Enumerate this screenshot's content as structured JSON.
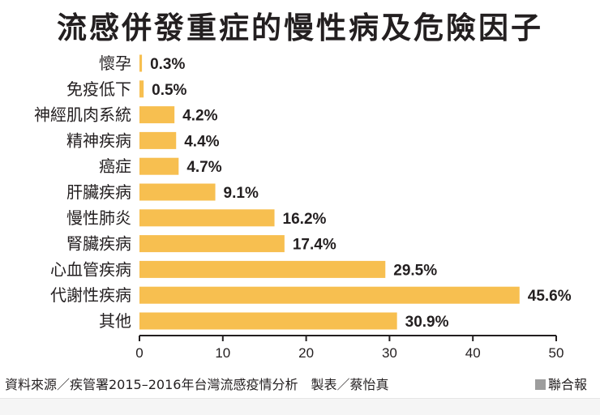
{
  "chart_data": {
    "type": "bar",
    "orientation": "horizontal",
    "title": "流感併發重症的慢性病及危險因子",
    "categories": [
      "懷孕",
      "免疫低下",
      "神經肌肉系統",
      "精神疾病",
      "癌症",
      "肝臟疾病",
      "慢性肺炎",
      "腎臟疾病",
      "心血管疾病",
      "代謝性疾病",
      "其他"
    ],
    "values": [
      0.3,
      0.5,
      4.2,
      4.4,
      4.7,
      9.1,
      16.2,
      17.4,
      29.5,
      45.6,
      30.9
    ],
    "value_labels": [
      "0.3%",
      "0.5%",
      "4.2%",
      "4.4%",
      "4.7%",
      "9.1%",
      "16.2%",
      "17.4%",
      "29.5%",
      "45.6%",
      "30.9%"
    ],
    "xlim": [
      0,
      50
    ],
    "xticks": [
      0,
      10,
      20,
      30,
      40,
      50
    ],
    "bar_color": "#f7bf50",
    "axis_color": "#231f20"
  },
  "footer": {
    "source": "資料來源／疾管署2015–2016年台灣流感疫情分析　製表／蔡怡真",
    "brand": "聯合報"
  }
}
